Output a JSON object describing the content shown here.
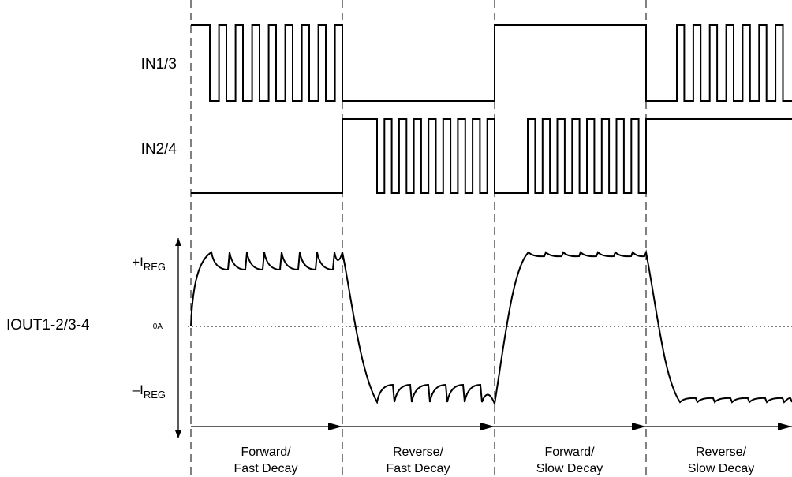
{
  "signals": {
    "in13": "IN1/3",
    "in24": "IN2/4",
    "iout": "IOUT1-2/3-4"
  },
  "current_axis": {
    "pos_prefix": "+I",
    "pos_sub": "REG",
    "zero": "0A",
    "neg_prefix": "–I",
    "neg_sub": "REG"
  },
  "phases": [
    {
      "line1": "Forward/",
      "line2": "Fast Decay"
    },
    {
      "line1": "Reverse/",
      "line2": "Fast Decay"
    },
    {
      "line1": "Forward/",
      "line2": "Slow Decay"
    },
    {
      "line1": "Reverse/",
      "line2": "Slow Decay"
    }
  ]
}
